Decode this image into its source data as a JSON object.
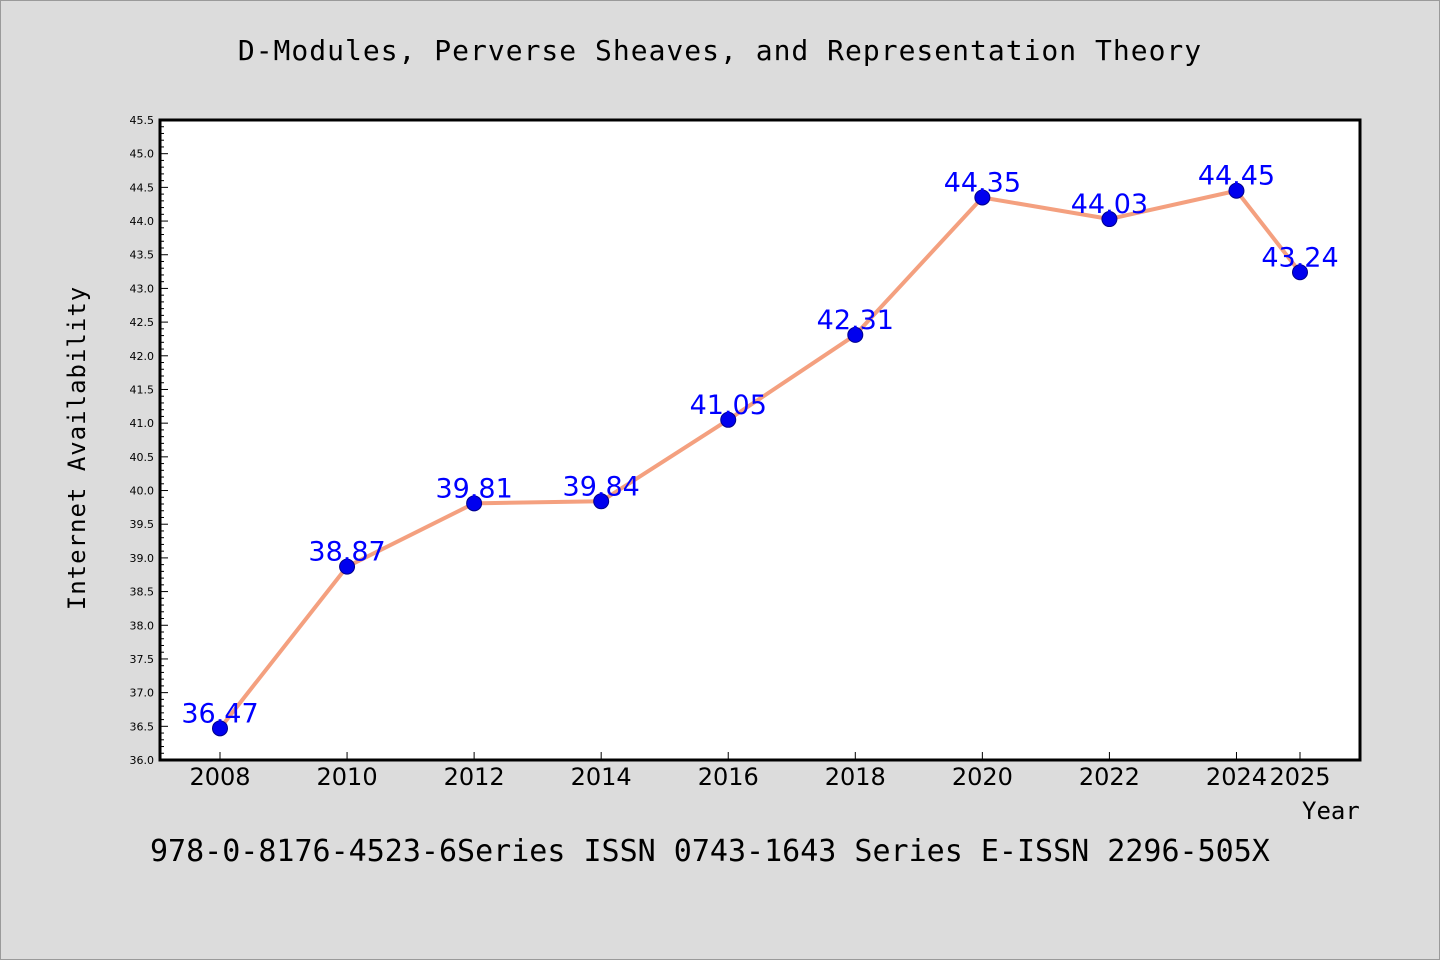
{
  "chart_data": {
    "type": "line",
    "title": "D-Modules, Perverse Sheaves, and Representation Theory",
    "xlabel": "Year",
    "ylabel": "Internet Availability",
    "ylim": [
      36.0,
      45.5
    ],
    "ytick_step": 0.5,
    "x": [
      "2008",
      "2010",
      "2012",
      "2014",
      "2016",
      "2018",
      "2020",
      "2022",
      "2024",
      "2025"
    ],
    "series": [
      {
        "values": [
          36.47,
          38.87,
          39.81,
          39.84,
          41.05,
          42.31,
          44.35,
          44.03,
          44.45,
          43.24
        ],
        "labels": [
          "36.47",
          "38.87",
          "39.81",
          "39.84",
          "41.05",
          "42.31",
          "44.35",
          "44.03",
          "44.45",
          "43.24"
        ],
        "line_color": "#f4a07f",
        "marker_color": "#0000ee",
        "label_color": "#0000ff"
      }
    ],
    "grid": false,
    "legend": "none"
  },
  "footer_text": "978-0-8176-4523-6Series ISSN 0743-1643 Series E-ISSN 2296-505X"
}
